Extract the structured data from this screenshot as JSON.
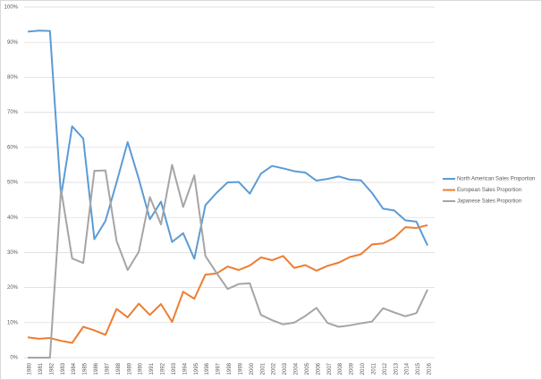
{
  "chart_data": {
    "type": "line",
    "categories": [
      "1980",
      "1981",
      "1982",
      "1983",
      "1984",
      "1985",
      "1986",
      "1987",
      "1988",
      "1989",
      "1990",
      "1991",
      "1992",
      "1993",
      "1994",
      "1995",
      "1996",
      "1997",
      "1998",
      "1999",
      "2000",
      "2001",
      "2002",
      "2003",
      "2004",
      "2005",
      "2006",
      "2007",
      "2008",
      "2009",
      "2010",
      "2011",
      "2012",
      "2013",
      "2014",
      "2015",
      "2016"
    ],
    "series": [
      {
        "name": "North American Sales Proportion",
        "color": "#5b9bd5",
        "values": [
          93.0,
          93.3,
          93.2,
          46,
          66,
          62.5,
          33.8,
          39,
          50,
          61.5,
          51,
          39.5,
          44.5,
          33,
          35.5,
          28.2,
          43.5,
          47,
          50,
          50.1,
          46.8,
          52.5,
          54.7,
          54,
          53.2,
          52.8,
          50.5,
          51,
          51.7,
          50.8,
          50.6,
          47,
          42.5,
          42,
          39.2,
          38.8,
          32
        ]
      },
      {
        "name": "European Sales Proportion",
        "color": "#ed7d31",
        "values": [
          5.8,
          5.4,
          5.6,
          4.8,
          4.2,
          8.8,
          7.8,
          6.5,
          13.9,
          11.5,
          15.4,
          12.2,
          15.3,
          10.2,
          18.8,
          16.8,
          23.7,
          24,
          26,
          25,
          26.3,
          28.6,
          27.8,
          29,
          25.6,
          26.4,
          24.8,
          26.2,
          27.1,
          28.7,
          29.5,
          32.3,
          32.6,
          34.2,
          37.2,
          37,
          37.8
        ]
      },
      {
        "name": "Japanese Sales Proportion",
        "color": "#a5a5a5",
        "values": [
          0,
          0,
          0,
          48,
          28.3,
          27,
          53.3,
          53.4,
          33.3,
          25,
          30.2,
          45.8,
          38,
          55,
          43,
          52,
          29,
          24.2,
          19.6,
          21,
          21.2,
          12.2,
          10.7,
          9.5,
          10,
          11.9,
          14.2,
          9.9,
          8.8,
          9.2,
          9.8,
          10.3,
          14.1,
          12.9,
          11.8,
          12.7,
          19.4
        ]
      }
    ],
    "ylim": [
      0,
      100
    ],
    "yticks": [
      {
        "value": 0,
        "label": "0%"
      },
      {
        "value": 10,
        "label": "10%"
      },
      {
        "value": 20,
        "label": "20%"
      },
      {
        "value": 30,
        "label": "30%"
      },
      {
        "value": 40,
        "label": "40%"
      },
      {
        "value": 50,
        "label": "50%"
      },
      {
        "value": 60,
        "label": "60%"
      },
      {
        "value": 70,
        "label": "70%"
      },
      {
        "value": 80,
        "label": "80%"
      },
      {
        "value": 90,
        "label": "90%"
      },
      {
        "value": 100,
        "label": "100%"
      }
    ],
    "grid": true,
    "legend": "right"
  }
}
